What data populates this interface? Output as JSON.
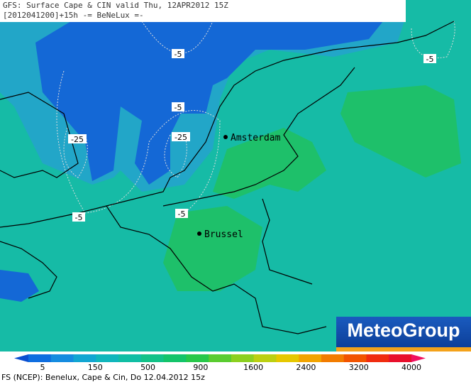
{
  "header": {
    "line1": "GFS: Surface Cape & CIN valid Thu, 12APR2012 15Z",
    "line2": "[2012041200]+15h -= BeNeLux =-"
  },
  "contours": [
    "-5",
    "-5",
    "-25",
    "-25",
    "-5",
    "-5",
    "-5"
  ],
  "cities": [
    "Amsterdam",
    "Brussel"
  ],
  "logo": "MeteoGroup",
  "legend": {
    "labels": [
      "5",
      "150",
      "500",
      "900",
      "1600",
      "2400",
      "3200",
      "4000"
    ],
    "colors": [
      "#0a4fd0",
      "#0f6ee0",
      "#158ce0",
      "#12a6d2",
      "#10b6bc",
      "#10bea4",
      "#12c288",
      "#14c46a",
      "#28c84a",
      "#5acc30",
      "#8cd020",
      "#bcd012",
      "#e6c800",
      "#f2a400",
      "#f27c00",
      "#f25400",
      "#f02c10",
      "#e8102c",
      "#f01060"
    ]
  },
  "footer": "FS (NCEP): Benelux, Cape & Cin, Do 12.04.2012 15z"
}
